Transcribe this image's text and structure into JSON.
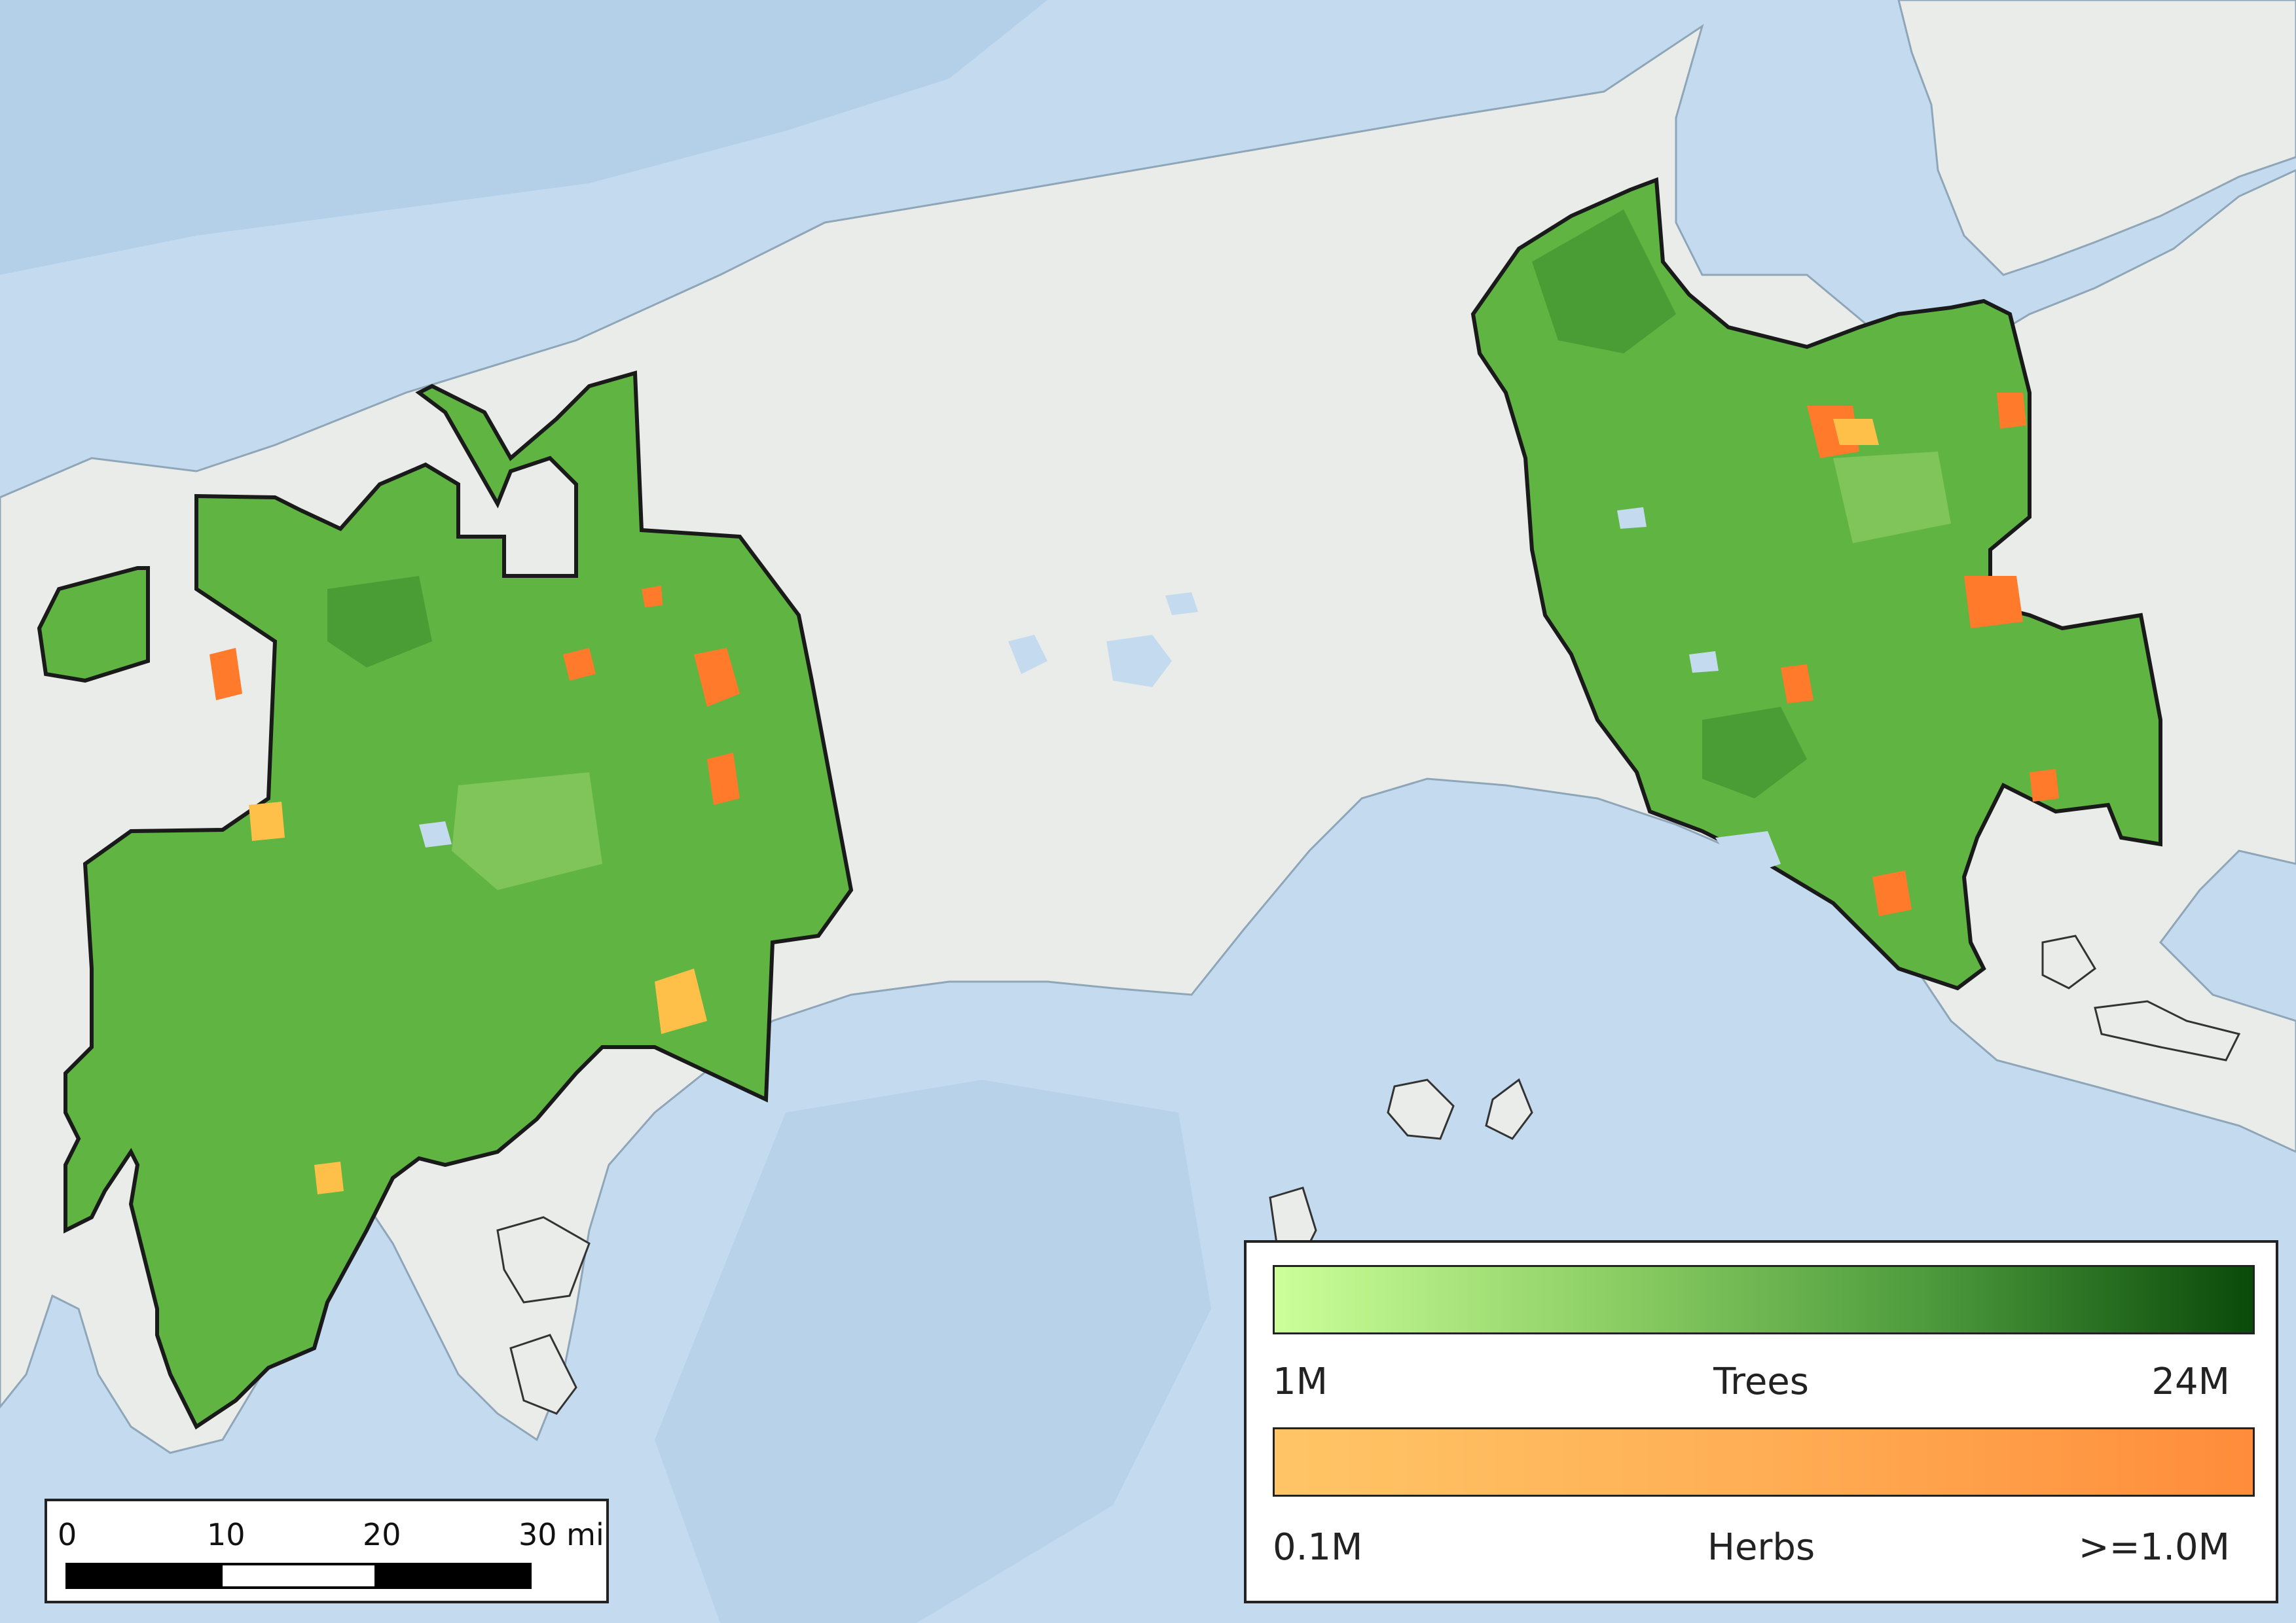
{
  "legend": {
    "trees": {
      "label": "Trees",
      "min_label": "1M",
      "max_label": "24M",
      "colors": [
        "#ccff99",
        "#8ed065",
        "#4d9b3d",
        "#0a4a0a"
      ]
    },
    "herbs": {
      "label": "Herbs",
      "min_label": "0.1M",
      "max_label": ">=1.0M",
      "colors": [
        "#ffc566",
        "#ffae55",
        "#ff8c3a"
      ]
    }
  },
  "scale_bar": {
    "ticks": [
      "0",
      "10",
      "20",
      "30 mi"
    ],
    "segments": [
      "black",
      "white",
      "black"
    ]
  },
  "colors": {
    "water": "#c4dbef",
    "land": "#eaecea",
    "region_fill": "#5fb442",
    "region_outline": "#1a1a1a",
    "herb_patch": "#ff7a2a",
    "herb_patch_light": "#ffc04a"
  }
}
